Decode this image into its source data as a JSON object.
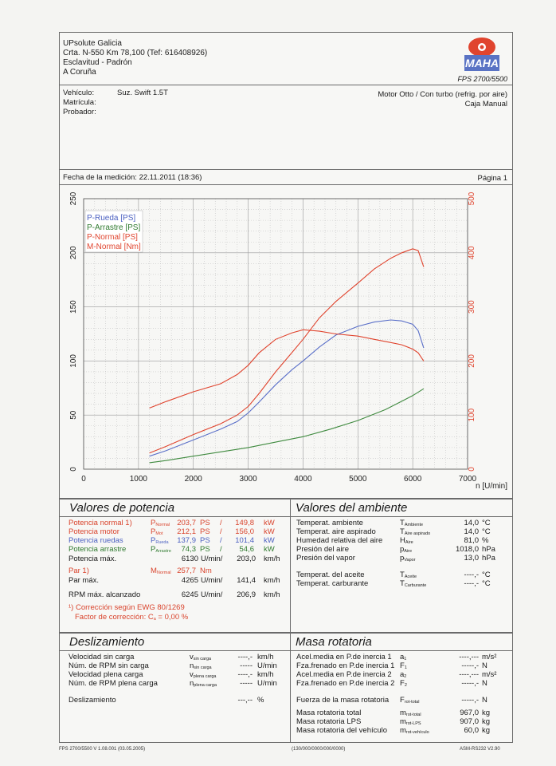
{
  "header": {
    "company": "UPsolute Galicia",
    "address1": "Crta. N-550 Km 78,100 (Tef: 616408926)",
    "address2": "Esclavitud - Padrón",
    "address3": "A Coruña",
    "logo_text": "MAHA",
    "model": "FPS 2700/5500"
  },
  "vehicle": {
    "vehiculo_label": "Vehículo:",
    "vehiculo_value": "Suz. Swift 1.5T",
    "matricula_label": "Matrícula:",
    "probador_label": "Probador:",
    "motor": "Motor Otto / Con turbo (refrig. por aire)",
    "caja": "Caja Manual"
  },
  "measurement": {
    "date_label": "Fecha de la medición: 22.11.2011 (18:36)",
    "page_label": "Página 1"
  },
  "chart_data": {
    "type": "line",
    "xlabel": "n [U/min]",
    "xlim": [
      0,
      7000
    ],
    "xticks": [
      "0",
      "1000",
      "2000",
      "3000",
      "4000",
      "5000",
      "6000",
      "7000"
    ],
    "ylim_left": [
      0,
      250
    ],
    "yticks_left": [
      "0",
      "50",
      "100",
      "150",
      "200",
      "250"
    ],
    "ylim_right": [
      0,
      500
    ],
    "yticks_right": [
      "0",
      "100",
      "200",
      "300",
      "400",
      "500"
    ],
    "legend": [
      "P-Rueda [PS]",
      "P-Arrastre [PS]",
      "P-Normal [PS]",
      "M-Normal [Nm]"
    ],
    "legend_position": "top-left",
    "series": [
      {
        "name": "P-Rueda [PS]",
        "axis": "left",
        "color": "#5a6fc8",
        "x": [
          1200,
          1500,
          2000,
          2500,
          2800,
          3000,
          3200,
          3500,
          3800,
          4000,
          4300,
          4600,
          5000,
          5300,
          5600,
          5800,
          6000,
          6100,
          6200
        ],
        "y": [
          12,
          17,
          27,
          37,
          44,
          52,
          62,
          78,
          92,
          100,
          113,
          124,
          132,
          136,
          137.9,
          137,
          134,
          128,
          112
        ]
      },
      {
        "name": "P-Arrastre [PS]",
        "axis": "left",
        "color": "#3f8a3f",
        "x": [
          1200,
          1500,
          2000,
          2500,
          3000,
          3500,
          4000,
          4500,
          5000,
          5500,
          6000,
          6200
        ],
        "y": [
          6,
          8,
          12,
          16,
          20,
          25,
          30,
          37,
          45,
          55,
          68,
          74.3
        ]
      },
      {
        "name": "P-Normal [PS]",
        "axis": "left",
        "color": "#e0442e",
        "x": [
          1200,
          1500,
          2000,
          2500,
          2800,
          3000,
          3200,
          3500,
          3800,
          4000,
          4300,
          4600,
          5000,
          5300,
          5600,
          5800,
          6000,
          6100,
          6200
        ],
        "y": [
          15,
          21,
          32,
          42,
          50,
          58,
          70,
          90,
          108,
          120,
          140,
          155,
          172,
          185,
          195,
          200,
          203.7,
          202,
          187
        ]
      },
      {
        "name": "M-Normal [Nm]",
        "axis": "right",
        "color": "#e0442e",
        "x": [
          1200,
          1500,
          2000,
          2500,
          2800,
          3000,
          3200,
          3500,
          3800,
          4000,
          4300,
          4600,
          5000,
          5300,
          5600,
          5800,
          6000,
          6100,
          6200
        ],
        "y": [
          113,
          125,
          143,
          158,
          175,
          192,
          215,
          240,
          252,
          257.7,
          255,
          250,
          246,
          240,
          234,
          230,
          222,
          215,
          200
        ]
      }
    ]
  },
  "potencia": {
    "title": "Valores de potencia",
    "normal": {
      "label": "Potencia normal",
      "sup": "1)",
      "sym": "P",
      "sub": "Normal",
      "ps": "203,7",
      "ps_unit": "PS",
      "sep": "/",
      "kw": "149,8",
      "kw_unit": "kW"
    },
    "motor": {
      "label": "Potencia motor",
      "sym": "P",
      "sub": "Mot",
      "ps": "212,1",
      "ps_unit": "PS",
      "sep": "/",
      "kw": "156,0",
      "kw_unit": "kW"
    },
    "ruedas": {
      "label": "Potencia ruedas",
      "sym": "P",
      "sub": "Rueda",
      "ps": "137,9",
      "ps_unit": "PS",
      "sep": "/",
      "kw": "101,4",
      "kw_unit": "kW"
    },
    "arrastre": {
      "label": "Potencia arrastre",
      "sym": "P",
      "sub": "Arrastre",
      "ps": "74,3",
      "ps_unit": "PS",
      "sep": "/",
      "kw": "54,6",
      "kw_unit": "kW"
    },
    "max": {
      "label": "Potencia máx.",
      "rpm": "6130",
      "rpm_unit": "U/min/",
      "speed": "203,0",
      "speed_unit": "km/h"
    },
    "par": {
      "label": "Par",
      "sup": "1)",
      "sym": "M",
      "sub": "Normal",
      "value": "257,7",
      "unit": "Nm"
    },
    "par_max": {
      "label": "Par máx.",
      "rpm": "4265",
      "rpm_unit": "U/min/",
      "speed": "141,4",
      "speed_unit": "km/h"
    },
    "rpm_max": {
      "label": "RPM máx. alcanzado",
      "rpm": "6245",
      "rpm_unit": "U/min/",
      "speed": "206,9",
      "speed_unit": "km/h"
    },
    "correction": "¹) Corrección según EWG 80/1269",
    "factor_label": "Factor de corrección: C",
    "factor_sub": "a",
    "factor_value": "= 0,00 %"
  },
  "ambiente": {
    "title": "Valores del ambiente",
    "rows": [
      {
        "label": "Temperat. ambiente",
        "sym": "T",
        "sub": "Ambiente",
        "value": "14,0",
        "unit": "°C"
      },
      {
        "label": "Temperat. aire aspirado",
        "sym": "T",
        "sub": "Aire aspirado",
        "value": "14,0",
        "unit": "°C"
      },
      {
        "label": "Humedad relativa del aire",
        "sym": "H",
        "sub": "Aire",
        "value": "81,0",
        "unit": "%"
      },
      {
        "label": "Presión del aire",
        "sym": "p",
        "sub": "Aire",
        "value": "1018,0",
        "unit": "hPa"
      },
      {
        "label": "Presión del vapor",
        "sym": "p",
        "sub": "Vapor",
        "value": "13,0",
        "unit": "hPa"
      }
    ],
    "rows2": [
      {
        "label": "Temperat. del aceite",
        "sym": "T",
        "sub": "Aceite",
        "value": "----,-",
        "unit": "°C"
      },
      {
        "label": "Temperat. carburante",
        "sym": "T",
        "sub": "Carburante",
        "value": "----,-",
        "unit": "°C"
      }
    ]
  },
  "deslizamiento": {
    "title": "Deslizamiento",
    "rows": [
      {
        "label": "Velocidad sin carga",
        "sym": "v",
        "sub": "sin carga",
        "value": "----,-",
        "unit": "km/h"
      },
      {
        "label": "Núm. de RPM sin carga",
        "sym": "n",
        "sub": "sin carga",
        "value": "-----",
        "unit": "U/min"
      },
      {
        "label": "Velocidad plena carga",
        "sym": "v",
        "sub": "plena carga",
        "value": "----,-",
        "unit": "km/h"
      },
      {
        "label": "Núm. de RPM plena carga",
        "sym": "n",
        "sub": "plena carga",
        "value": "-----",
        "unit": "U/min"
      }
    ],
    "slip": {
      "label": "Deslizamiento",
      "value": "---,--",
      "unit": "%"
    }
  },
  "masa": {
    "title": "Masa rotatoria",
    "rows": [
      {
        "label": "Acel.media en P.de inercia 1",
        "sym": "a",
        "sub": "1",
        "value": "----,---",
        "unit": "m/s²"
      },
      {
        "label": "Fza.frenado en P.de inercia 1",
        "sym": "F",
        "sub": "1",
        "value": "-----,-",
        "unit": "N"
      },
      {
        "label": "Acel.media en P.de inercia 2",
        "sym": "a",
        "sub": "2",
        "value": "----,---",
        "unit": "m/s²"
      },
      {
        "label": "Fza.frenado en P.de inercia 2",
        "sym": "F",
        "sub": "2",
        "value": "-----,-",
        "unit": "N"
      }
    ],
    "fuerza": {
      "label": "Fuerza de la masa rotatoria",
      "sym": "F",
      "sub": "rot-total",
      "value": "-----,-",
      "unit": "N"
    },
    "rows2": [
      {
        "label": "Masa rotatoria total",
        "sym": "m",
        "sub": "rot-total",
        "value": "967,0",
        "unit": "kg"
      },
      {
        "label": "Masa rotatoria LPS",
        "sym": "m",
        "sub": "rot-LPS",
        "value": "907,0",
        "unit": "kg"
      },
      {
        "label": "Masa rotatoria del vehículo",
        "sym": "m",
        "sub": "rot-vehículo",
        "value": "60,0",
        "unit": "kg"
      }
    ]
  },
  "footer": {
    "left": "FPS 2700/5500 V 1.08.001 (03.05.2005)",
    "center": "(130/000/0000/000/0000)",
    "right": "ASM-RS232 V2.90"
  }
}
